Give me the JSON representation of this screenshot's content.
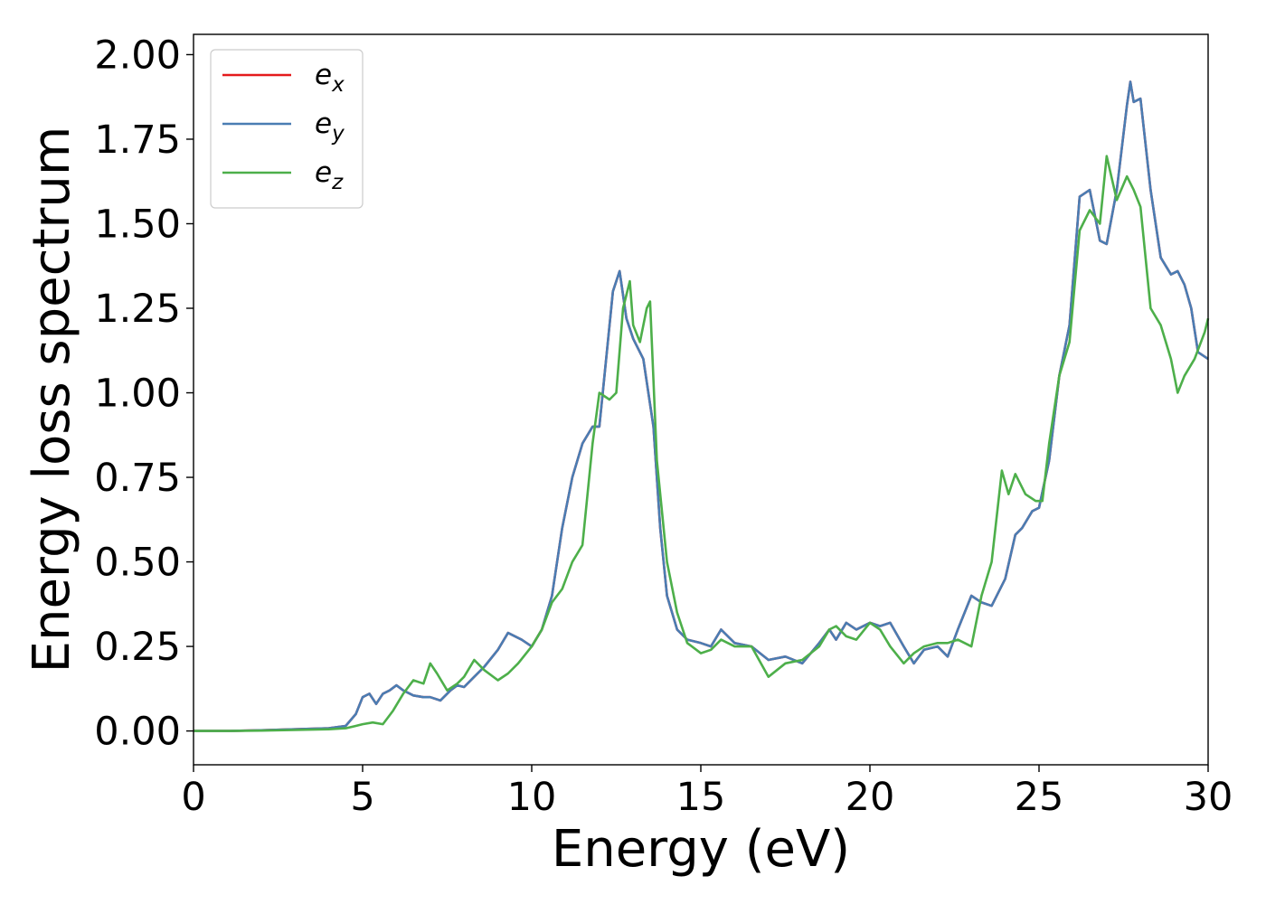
{
  "chart_data": {
    "type": "line",
    "xlabel": "Energy (eV)",
    "ylabel": "Energy loss spectrum",
    "xlim": [
      0,
      30
    ],
    "ylim": [
      -0.1,
      2.06
    ],
    "xticks": [
      0,
      5,
      10,
      15,
      20,
      25,
      30
    ],
    "yticks": [
      0.0,
      0.25,
      0.5,
      0.75,
      1.0,
      1.25,
      1.5,
      1.75,
      2.0
    ],
    "xtick_labels": [
      "0",
      "5",
      "10",
      "15",
      "20",
      "25",
      "30"
    ],
    "ytick_labels": [
      "0.00",
      "0.25",
      "0.50",
      "0.75",
      "1.00",
      "1.25",
      "1.50",
      "1.75",
      "2.00"
    ],
    "grid": false,
    "legend_position": "top-left",
    "series": [
      {
        "name": "e_x",
        "label_base": "e",
        "label_sub": "x",
        "color": "#e41a1c",
        "x": [
          0,
          1,
          2,
          3,
          4,
          4.5,
          4.8,
          5.0,
          5.2,
          5.4,
          5.6,
          5.8,
          6.0,
          6.2,
          6.5,
          6.8,
          7.0,
          7.3,
          7.6,
          7.8,
          8.0,
          8.3,
          8.6,
          9.0,
          9.3,
          9.7,
          10.0,
          10.3,
          10.6,
          10.9,
          11.2,
          11.5,
          11.8,
          12.0,
          12.2,
          12.4,
          12.6,
          12.8,
          13.0,
          13.3,
          13.6,
          13.8,
          14.0,
          14.3,
          14.6,
          15.0,
          15.3,
          15.6,
          16.0,
          16.5,
          17.0,
          17.5,
          18.0,
          18.5,
          18.8,
          19.0,
          19.3,
          19.6,
          20.0,
          20.3,
          20.6,
          21.0,
          21.3,
          21.6,
          22.0,
          22.3,
          22.6,
          23.0,
          23.3,
          23.6,
          24.0,
          24.3,
          24.5,
          24.8,
          25.0,
          25.3,
          25.6,
          25.9,
          26.2,
          26.5,
          26.8,
          27.0,
          27.3,
          27.6,
          27.7,
          27.8,
          28.0,
          28.3,
          28.6,
          28.9,
          29.1,
          29.3,
          29.5,
          29.7,
          30.0
        ],
        "values": [
          0,
          0,
          0.002,
          0.005,
          0.008,
          0.015,
          0.05,
          0.1,
          0.11,
          0.08,
          0.11,
          0.12,
          0.135,
          0.12,
          0.105,
          0.1,
          0.1,
          0.09,
          0.12,
          0.135,
          0.13,
          0.16,
          0.19,
          0.24,
          0.29,
          0.27,
          0.25,
          0.3,
          0.4,
          0.6,
          0.75,
          0.85,
          0.9,
          0.9,
          1.1,
          1.3,
          1.36,
          1.22,
          1.16,
          1.1,
          0.9,
          0.6,
          0.4,
          0.3,
          0.27,
          0.26,
          0.25,
          0.3,
          0.26,
          0.25,
          0.21,
          0.22,
          0.2,
          0.26,
          0.3,
          0.27,
          0.32,
          0.3,
          0.32,
          0.31,
          0.32,
          0.25,
          0.2,
          0.24,
          0.25,
          0.22,
          0.3,
          0.4,
          0.38,
          0.37,
          0.45,
          0.58,
          0.6,
          0.65,
          0.66,
          0.8,
          1.05,
          1.2,
          1.58,
          1.6,
          1.45,
          1.44,
          1.6,
          1.85,
          1.92,
          1.86,
          1.87,
          1.6,
          1.4,
          1.35,
          1.36,
          1.32,
          1.25,
          1.12,
          1.1
        ]
      },
      {
        "name": "e_y",
        "label_base": "e",
        "label_sub": "y",
        "color": "#4a7db3",
        "x": [
          0,
          1,
          2,
          3,
          4,
          4.5,
          4.8,
          5.0,
          5.2,
          5.4,
          5.6,
          5.8,
          6.0,
          6.2,
          6.5,
          6.8,
          7.0,
          7.3,
          7.6,
          7.8,
          8.0,
          8.3,
          8.6,
          9.0,
          9.3,
          9.7,
          10.0,
          10.3,
          10.6,
          10.9,
          11.2,
          11.5,
          11.8,
          12.0,
          12.2,
          12.4,
          12.6,
          12.8,
          13.0,
          13.3,
          13.6,
          13.8,
          14.0,
          14.3,
          14.6,
          15.0,
          15.3,
          15.6,
          16.0,
          16.5,
          17.0,
          17.5,
          18.0,
          18.5,
          18.8,
          19.0,
          19.3,
          19.6,
          20.0,
          20.3,
          20.6,
          21.0,
          21.3,
          21.6,
          22.0,
          22.3,
          22.6,
          23.0,
          23.3,
          23.6,
          24.0,
          24.3,
          24.5,
          24.8,
          25.0,
          25.3,
          25.6,
          25.9,
          26.2,
          26.5,
          26.8,
          27.0,
          27.3,
          27.6,
          27.7,
          27.8,
          28.0,
          28.3,
          28.6,
          28.9,
          29.1,
          29.3,
          29.5,
          29.7,
          30.0
        ],
        "values": [
          0,
          0,
          0.002,
          0.005,
          0.008,
          0.015,
          0.05,
          0.1,
          0.11,
          0.08,
          0.11,
          0.12,
          0.135,
          0.12,
          0.105,
          0.1,
          0.1,
          0.09,
          0.12,
          0.135,
          0.13,
          0.16,
          0.19,
          0.24,
          0.29,
          0.27,
          0.25,
          0.3,
          0.4,
          0.6,
          0.75,
          0.85,
          0.9,
          0.9,
          1.1,
          1.3,
          1.36,
          1.22,
          1.16,
          1.1,
          0.9,
          0.6,
          0.4,
          0.3,
          0.27,
          0.26,
          0.25,
          0.3,
          0.26,
          0.25,
          0.21,
          0.22,
          0.2,
          0.26,
          0.3,
          0.27,
          0.32,
          0.3,
          0.32,
          0.31,
          0.32,
          0.25,
          0.2,
          0.24,
          0.25,
          0.22,
          0.3,
          0.4,
          0.38,
          0.37,
          0.45,
          0.58,
          0.6,
          0.65,
          0.66,
          0.8,
          1.05,
          1.2,
          1.58,
          1.6,
          1.45,
          1.44,
          1.6,
          1.85,
          1.92,
          1.86,
          1.87,
          1.6,
          1.4,
          1.35,
          1.36,
          1.32,
          1.25,
          1.12,
          1.1
        ]
      },
      {
        "name": "e_z",
        "label_base": "e",
        "label_sub": "z",
        "color": "#4daf4a",
        "x": [
          0,
          1,
          2,
          3,
          4,
          4.5,
          4.8,
          5.0,
          5.3,
          5.6,
          5.9,
          6.2,
          6.5,
          6.8,
          7.0,
          7.2,
          7.5,
          7.8,
          8.0,
          8.3,
          8.6,
          9.0,
          9.3,
          9.6,
          10.0,
          10.3,
          10.6,
          10.9,
          11.2,
          11.5,
          11.8,
          12.0,
          12.3,
          12.5,
          12.7,
          12.9,
          13.0,
          13.2,
          13.4,
          13.5,
          13.7,
          14.0,
          14.3,
          14.6,
          15.0,
          15.3,
          15.6,
          16.0,
          16.5,
          17.0,
          17.5,
          18.0,
          18.5,
          18.8,
          19.0,
          19.3,
          19.6,
          20.0,
          20.3,
          20.6,
          21.0,
          21.3,
          21.6,
          22.0,
          22.3,
          22.6,
          23.0,
          23.3,
          23.6,
          23.9,
          24.1,
          24.3,
          24.6,
          24.9,
          25.1,
          25.3,
          25.6,
          25.9,
          26.2,
          26.5,
          26.8,
          27.0,
          27.3,
          27.6,
          27.8,
          28.0,
          28.3,
          28.6,
          28.9,
          29.1,
          29.3,
          29.6,
          29.9,
          30.0
        ],
        "values": [
          0,
          0,
          0.001,
          0.003,
          0.005,
          0.008,
          0.015,
          0.02,
          0.025,
          0.02,
          0.06,
          0.11,
          0.15,
          0.14,
          0.2,
          0.17,
          0.12,
          0.14,
          0.16,
          0.21,
          0.18,
          0.15,
          0.17,
          0.2,
          0.25,
          0.3,
          0.38,
          0.42,
          0.5,
          0.55,
          0.85,
          1.0,
          0.98,
          1.0,
          1.25,
          1.33,
          1.2,
          1.15,
          1.25,
          1.27,
          0.8,
          0.5,
          0.35,
          0.26,
          0.23,
          0.24,
          0.27,
          0.25,
          0.25,
          0.16,
          0.2,
          0.21,
          0.25,
          0.3,
          0.31,
          0.28,
          0.27,
          0.32,
          0.3,
          0.25,
          0.2,
          0.23,
          0.25,
          0.26,
          0.26,
          0.27,
          0.25,
          0.4,
          0.5,
          0.77,
          0.7,
          0.76,
          0.7,
          0.68,
          0.68,
          0.85,
          1.05,
          1.15,
          1.48,
          1.54,
          1.5,
          1.7,
          1.57,
          1.64,
          1.6,
          1.55,
          1.25,
          1.2,
          1.1,
          1.0,
          1.05,
          1.1,
          1.18,
          1.22
        ]
      }
    ]
  }
}
